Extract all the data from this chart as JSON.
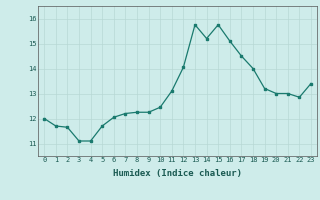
{
  "x": [
    0,
    1,
    2,
    3,
    4,
    5,
    6,
    7,
    8,
    9,
    10,
    11,
    12,
    13,
    14,
    15,
    16,
    17,
    18,
    19,
    20,
    21,
    22,
    23
  ],
  "y": [
    12.0,
    11.7,
    11.65,
    11.1,
    11.1,
    11.7,
    12.05,
    12.2,
    12.25,
    12.25,
    12.45,
    13.1,
    14.05,
    15.75,
    15.2,
    15.75,
    15.1,
    14.5,
    14.0,
    13.2,
    13.0,
    13.0,
    12.85,
    13.4
  ],
  "xlabel": "Humidex (Indice chaleur)",
  "ylim": [
    10.5,
    16.5
  ],
  "xlim": [
    -0.5,
    23.5
  ],
  "yticks": [
    11,
    12,
    13,
    14,
    15,
    16
  ],
  "xticks": [
    0,
    1,
    2,
    3,
    4,
    5,
    6,
    7,
    8,
    9,
    10,
    11,
    12,
    13,
    14,
    15,
    16,
    17,
    18,
    19,
    20,
    21,
    22,
    23
  ],
  "line_color": "#1a7a6e",
  "marker": "s",
  "marker_size": 1.8,
  "bg_color": "#ceecea",
  "grid_color_major": "#b8d8d5",
  "grid_color_minor": "#d8eeec",
  "line_width": 0.9,
  "tick_label_fontsize": 5.0,
  "xlabel_fontsize": 6.5
}
